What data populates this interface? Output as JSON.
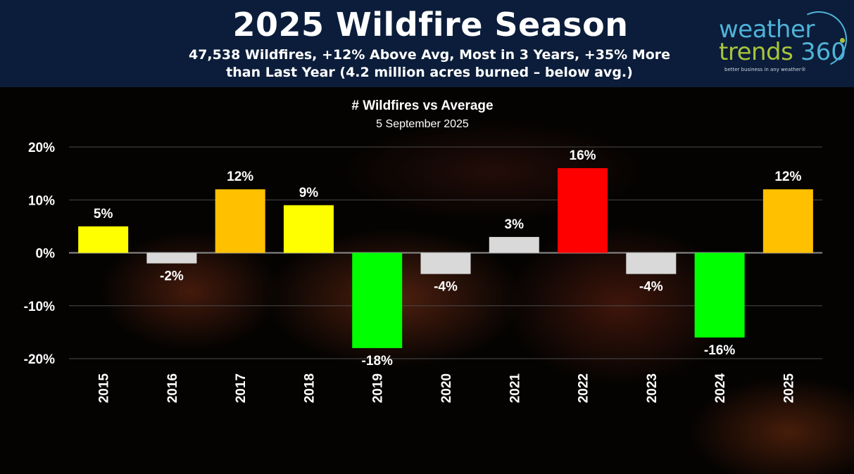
{
  "header": {
    "title": "2025 Wildfire Season",
    "subtitle_line1": "47,538 Wildfires, +12% Above Avg, Most in 3 Years, +35% More",
    "subtitle_line2": "than Last Year (4.2 million acres burned – below avg.)"
  },
  "logo": {
    "word1": "weather",
    "word2": "trends",
    "number": "360",
    "tagline": "better business in any weather®"
  },
  "colors": {
    "header_bg": "#0b1d3a",
    "yellow": "#ffff00",
    "orange": "#ffc000",
    "red": "#ff0000",
    "green": "#00ff00",
    "gray": "#d9d9d9"
  },
  "chart_data": {
    "type": "bar",
    "title": "# Wildfires vs Average",
    "subtitle": "5 September 2025",
    "categories": [
      "2015",
      "2016",
      "2017",
      "2018",
      "2019",
      "2020",
      "2021",
      "2022",
      "2023",
      "2024",
      "2025"
    ],
    "values": [
      5,
      -2,
      12,
      9,
      -18,
      -4,
      3,
      16,
      -4,
      -16,
      12
    ],
    "data_labels": [
      "5%",
      "-2%",
      "12%",
      "9%",
      "-18%",
      "-4%",
      "3%",
      "16%",
      "-4%",
      "-16%",
      "12%"
    ],
    "bar_colors": [
      "#ffff00",
      "#d9d9d9",
      "#ffc000",
      "#ffff00",
      "#00ff00",
      "#d9d9d9",
      "#d9d9d9",
      "#ff0000",
      "#d9d9d9",
      "#00ff00",
      "#ffc000"
    ],
    "yticks": [
      20,
      10,
      0,
      -10,
      -20
    ],
    "ytick_labels": [
      "20%",
      "10%",
      "0%",
      "-10%",
      "-20%"
    ],
    "ylim": [
      -20,
      20
    ],
    "grid": true,
    "legend": "none"
  }
}
